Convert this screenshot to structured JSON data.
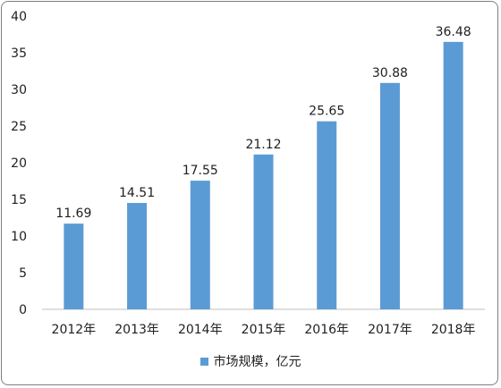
{
  "chart_data": {
    "type": "bar",
    "categories": [
      "2012年",
      "2013年",
      "2014年",
      "2015年",
      "2016年",
      "2017年",
      "2018年"
    ],
    "series": [
      {
        "name": "市场规模，亿元",
        "values": [
          11.69,
          14.51,
          17.55,
          21.12,
          25.65,
          30.88,
          36.48
        ]
      }
    ],
    "data_labels": [
      "11.69",
      "14.51",
      "17.55",
      "21.12",
      "25.65",
      "30.88",
      "36.48"
    ],
    "yticks": [
      "0",
      "5",
      "10",
      "15",
      "20",
      "25",
      "30",
      "35",
      "40"
    ],
    "ylim": [
      0,
      40
    ],
    "grid": false,
    "legend_position": "bottom",
    "colors": {
      "bar": "#5b9bd5",
      "axis": "#bfbfbf",
      "text": "#1f1f1f"
    }
  }
}
